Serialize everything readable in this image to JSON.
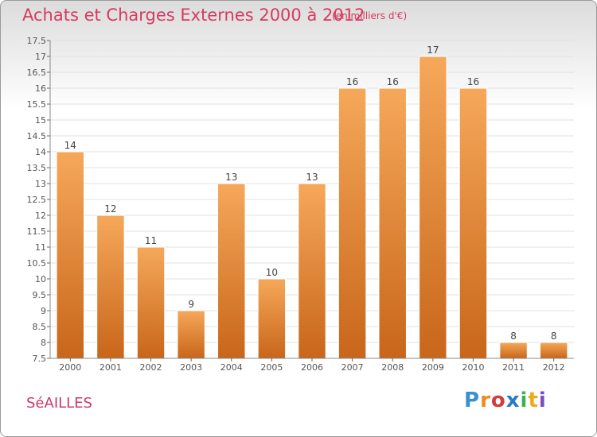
{
  "header": {
    "title": "Achats et Charges Externes 2000 à 2012",
    "subtitle": "(en milliers d'€)"
  },
  "footer": {
    "commune": "SéAILLES",
    "logo_letters": [
      "P",
      "r",
      "o",
      "x",
      "i",
      "t",
      "i"
    ],
    "logo_colors": [
      "#3a8fd1",
      "#f08a1c",
      "#d23c3c",
      "#2c78c8",
      "#3bb34a",
      "#f0a81c",
      "#7d4bc0"
    ]
  },
  "chart_data": {
    "type": "bar",
    "title": "Achats et Charges Externes 2000 à 2012",
    "subtitle": "(en milliers d'€)",
    "categories": [
      "2000",
      "2001",
      "2002",
      "2003",
      "2004",
      "2005",
      "2006",
      "2007",
      "2008",
      "2009",
      "2010",
      "2011",
      "2012"
    ],
    "values": [
      14,
      12,
      11,
      9,
      13,
      10,
      13,
      16,
      16,
      17,
      16,
      8,
      8
    ],
    "value_labels": [
      "14",
      "12",
      "11",
      "9",
      "13",
      "10",
      "13",
      "16",
      "16",
      "17",
      "16",
      "8",
      "8"
    ],
    "ylim": [
      7.5,
      17.5
    ],
    "yticks": [
      "7.5",
      "8",
      "8.5",
      "9",
      "9.5",
      "10",
      "10.5",
      "11",
      "11.5",
      "12",
      "12.5",
      "13",
      "13.5",
      "14",
      "14.5",
      "15",
      "15.5",
      "16",
      "16.5",
      "17",
      "17.5"
    ],
    "grid": true,
    "bar_color_top": "#f6a85a",
    "bar_color_bottom": "#c8661a",
    "text_color": "#d73a60"
  }
}
